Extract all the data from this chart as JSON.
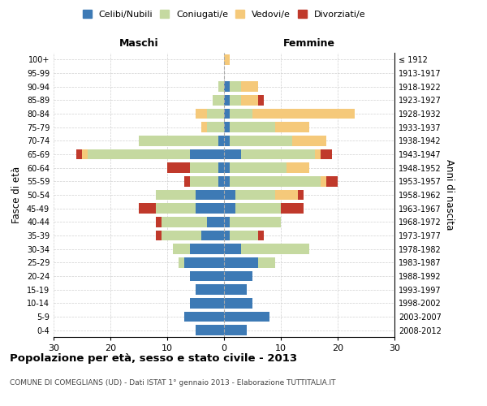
{
  "age_groups": [
    "0-4",
    "5-9",
    "10-14",
    "15-19",
    "20-24",
    "25-29",
    "30-34",
    "35-39",
    "40-44",
    "45-49",
    "50-54",
    "55-59",
    "60-64",
    "65-69",
    "70-74",
    "75-79",
    "80-84",
    "85-89",
    "90-94",
    "95-99",
    "100+"
  ],
  "birth_years": [
    "2008-2012",
    "2003-2007",
    "1998-2002",
    "1993-1997",
    "1988-1992",
    "1983-1987",
    "1978-1982",
    "1973-1977",
    "1968-1972",
    "1963-1967",
    "1958-1962",
    "1953-1957",
    "1948-1952",
    "1943-1947",
    "1938-1942",
    "1933-1937",
    "1928-1932",
    "1923-1927",
    "1918-1922",
    "1913-1917",
    "≤ 1912"
  ],
  "male": {
    "celibi": [
      5,
      7,
      6,
      5,
      6,
      7,
      6,
      4,
      3,
      5,
      5,
      1,
      1,
      6,
      1,
      0,
      0,
      0,
      0,
      0,
      0
    ],
    "coniugati": [
      0,
      0,
      0,
      0,
      0,
      1,
      3,
      7,
      8,
      7,
      7,
      5,
      5,
      18,
      14,
      3,
      3,
      2,
      1,
      0,
      0
    ],
    "vedovi": [
      0,
      0,
      0,
      0,
      0,
      0,
      0,
      0,
      0,
      0,
      0,
      0,
      0,
      1,
      0,
      1,
      2,
      0,
      0,
      0,
      0
    ],
    "divorziati": [
      0,
      0,
      0,
      0,
      0,
      0,
      0,
      1,
      1,
      3,
      0,
      1,
      4,
      1,
      0,
      0,
      0,
      0,
      0,
      0,
      0
    ]
  },
  "female": {
    "nubili": [
      4,
      8,
      5,
      4,
      5,
      6,
      3,
      1,
      1,
      2,
      2,
      1,
      1,
      3,
      1,
      1,
      1,
      1,
      1,
      0,
      0
    ],
    "coniugate": [
      0,
      0,
      0,
      0,
      0,
      3,
      12,
      5,
      9,
      8,
      7,
      16,
      10,
      13,
      11,
      8,
      4,
      2,
      2,
      0,
      0
    ],
    "vedove": [
      0,
      0,
      0,
      0,
      0,
      0,
      0,
      0,
      0,
      0,
      4,
      1,
      4,
      1,
      6,
      6,
      18,
      3,
      3,
      0,
      1
    ],
    "divorziate": [
      0,
      0,
      0,
      0,
      0,
      0,
      0,
      1,
      0,
      4,
      1,
      2,
      0,
      2,
      0,
      0,
      0,
      1,
      0,
      0,
      0
    ]
  },
  "colors": {
    "celibi": "#3d7ab5",
    "coniugati": "#c5d9a0",
    "vedovi": "#f5c97a",
    "divorziati": "#c0392b"
  },
  "title": "Popolazione per età, sesso e stato civile - 2013",
  "subtitle": "COMUNE DI COMEGLIANS (UD) - Dati ISTAT 1° gennaio 2013 - Elaborazione TUTTITALIA.IT",
  "xlabel_left": "Maschi",
  "xlabel_right": "Femmine",
  "ylabel": "Fasce di età",
  "ylabel_right": "Anni di nascita",
  "xlim": 30,
  "legend_labels": [
    "Celibi/Nubili",
    "Coniugati/e",
    "Vedovi/e",
    "Divorziati/e"
  ],
  "background_color": "#ffffff",
  "grid_color": "#cccccc"
}
